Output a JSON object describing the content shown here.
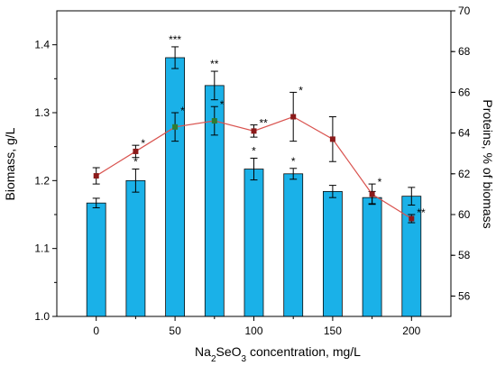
{
  "chart_data": {
    "type": "bar",
    "xlabel_prefix": "Na",
    "xlabel_sub1": "2",
    "xlabel_mid": "SeO",
    "xlabel_sub2": "3",
    "xlabel_suffix": " concentration, mg/L",
    "ylabel_left": "Biomass, g/L",
    "ylabel_right": "Proteins, % of biomass",
    "ylim_left": [
      1.0,
      1.45
    ],
    "ylim_right": [
      55,
      70
    ],
    "x_range": [
      -25,
      225
    ],
    "left_ticks": [
      1.0,
      1.1,
      1.2,
      1.3,
      1.4
    ],
    "right_ticks": [
      56,
      58,
      60,
      62,
      64,
      66,
      68,
      70
    ],
    "x_ticks": [
      0,
      50,
      100,
      150,
      200
    ],
    "bar_color": "#1ab1e8",
    "bar_edge_color": "#0a0a0a",
    "line_color": "#d9534f",
    "marker_color": "#8b1a1a",
    "marker_highlight_color": "#2e7d32",
    "series": [
      {
        "name": "Biomass",
        "kind": "bar",
        "x": [
          0,
          25,
          50,
          75,
          100,
          125,
          150,
          175,
          200
        ],
        "values": [
          1.167,
          1.2,
          1.381,
          1.34,
          1.217,
          1.21,
          1.184,
          1.175,
          1.177
        ],
        "errors": [
          0.007,
          0.017,
          0.016,
          0.021,
          0.016,
          0.008,
          0.009,
          0.009,
          0.013
        ],
        "significance": [
          "",
          "*",
          "***",
          "**",
          "*",
          "*",
          "",
          "",
          ""
        ]
      },
      {
        "name": "Proteins",
        "kind": "line",
        "x": [
          0,
          25,
          50,
          75,
          100,
          125,
          150,
          175,
          200
        ],
        "values": [
          61.9,
          63.1,
          64.3,
          64.6,
          64.1,
          64.8,
          63.7,
          61.0,
          59.8
        ],
        "errors": [
          0.4,
          0.3,
          0.7,
          0.7,
          0.3,
          1.2,
          1.1,
          0.5,
          0.2
        ],
        "significance": [
          "",
          "*",
          "*",
          "*",
          "**",
          "*",
          "",
          "*",
          "**"
        ],
        "marker_colors": [
          "#8b1a1a",
          "#8b1a1a",
          "#2e7d32",
          "#2e7d32",
          "#8b1a1a",
          "#8b1a1a",
          "#8b1a1a",
          "#8b1a1a",
          "#8b1a1a"
        ]
      }
    ]
  }
}
